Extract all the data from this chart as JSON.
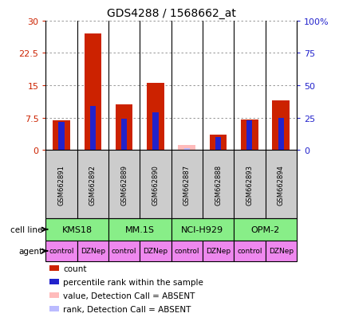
{
  "title": "GDS4288 / 1568662_at",
  "samples": [
    "GSM662891",
    "GSM662892",
    "GSM662889",
    "GSM662890",
    "GSM662887",
    "GSM662888",
    "GSM662893",
    "GSM662894"
  ],
  "count_values": [
    6.8,
    27.0,
    10.5,
    15.5,
    0.0,
    3.5,
    7.0,
    11.5
  ],
  "rank_values": [
    22.0,
    34.0,
    24.0,
    29.0,
    0.0,
    10.0,
    23.0,
    25.0
  ],
  "absent_mask": [
    false,
    false,
    false,
    false,
    true,
    false,
    false,
    false
  ],
  "absent_count_values": [
    0.0,
    0.0,
    0.0,
    0.0,
    1.2,
    0.0,
    0.0,
    0.0
  ],
  "absent_rank_values": [
    0.0,
    0.0,
    0.0,
    0.0,
    1.5,
    0.0,
    0.0,
    0.0
  ],
  "cell_lines": [
    {
      "label": "KMS18",
      "span": [
        0,
        2
      ]
    },
    {
      "label": "MM.1S",
      "span": [
        2,
        4
      ]
    },
    {
      "label": "NCI-H929",
      "span": [
        4,
        6
      ]
    },
    {
      "label": "OPM-2",
      "span": [
        6,
        8
      ]
    }
  ],
  "agents": [
    "control",
    "DZNep",
    "control",
    "DZNep",
    "control",
    "DZNep",
    "control",
    "DZNep"
  ],
  "ylim_left": [
    0,
    30
  ],
  "ylim_right": [
    0,
    100
  ],
  "yticks_left": [
    0,
    7.5,
    15,
    22.5,
    30
  ],
  "ytick_labels_left": [
    "0",
    "7.5",
    "15",
    "22.5",
    "30"
  ],
  "yticks_right": [
    0,
    25,
    50,
    75,
    100
  ],
  "ytick_labels_right": [
    "0",
    "25",
    "50",
    "75",
    "100%"
  ],
  "count_color": "#cc2200",
  "rank_color": "#2222cc",
  "absent_count_color": "#ffbbbb",
  "absent_rank_color": "#bbbbff",
  "cell_line_color": "#88ee88",
  "agent_color": "#ee88ee",
  "label_color_left": "#cc2200",
  "label_color_right": "#2222cc",
  "grid_color": "#888888",
  "bg_color": "#ffffff",
  "sample_bg_color": "#cccccc",
  "legend_items": [
    {
      "color": "#cc2200",
      "label": "count"
    },
    {
      "color": "#2222cc",
      "label": "percentile rank within the sample"
    },
    {
      "color": "#ffbbbb",
      "label": "value, Detection Call = ABSENT"
    },
    {
      "color": "#bbbbff",
      "label": "rank, Detection Call = ABSENT"
    }
  ]
}
